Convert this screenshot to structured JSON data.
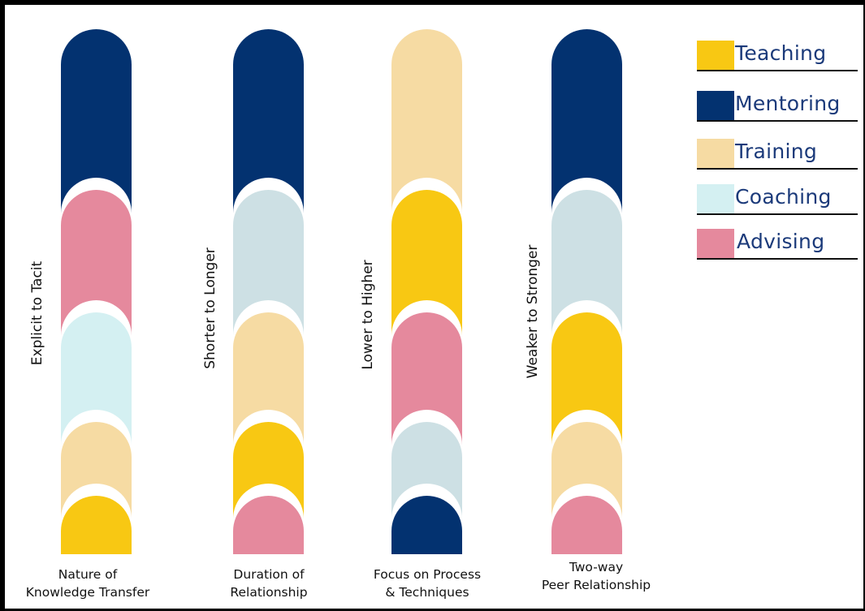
{
  "colors": {
    "Teaching": "#f8c813",
    "Mentoring": "#033270",
    "Training": "#f6dba3",
    "Coaching": "#d4f0f2",
    "Advising": "#e5899d",
    "Lightgray": "#cde0e4"
  },
  "legend": [
    {
      "label": "Teaching",
      "color": "#f8c813"
    },
    {
      "label": "Mentoring",
      "color": "#033270"
    },
    {
      "label": "Training",
      "color": "#f6dba3"
    },
    {
      "label": "Coaching",
      "color": "#d4f0f2"
    },
    {
      "label": "Advising",
      "color": "#e5899d"
    }
  ],
  "columns": [
    {
      "axis_label": "Explicit to Tacit",
      "caption_line1": "Nature of",
      "caption_line2": "Knowledge Transfer",
      "stack_top_to_bottom": [
        "Mentoring",
        "Advising",
        "Coaching",
        "Training",
        "Teaching"
      ]
    },
    {
      "axis_label": "Shorter to Longer",
      "caption_line1": "Duration of",
      "caption_line2": "Relationship",
      "stack_top_to_bottom": [
        "Mentoring",
        "Coaching-gray",
        "Training",
        "Teaching",
        "Advising"
      ]
    },
    {
      "axis_label": "Lower to Higher",
      "caption_line1": "Focus on Process",
      "caption_line2": "& Techniques",
      "stack_top_to_bottom": [
        "Training",
        "Teaching",
        "Advising",
        "Coaching-gray",
        "Mentoring"
      ]
    },
    {
      "axis_label": "Weaker to Stronger",
      "caption_line1": "Two-way",
      "caption_line2": "Peer Relationship",
      "stack_top_to_bottom": [
        "Mentoring",
        "Coaching-gray",
        "Teaching",
        "Training",
        "Advising"
      ]
    }
  ]
}
